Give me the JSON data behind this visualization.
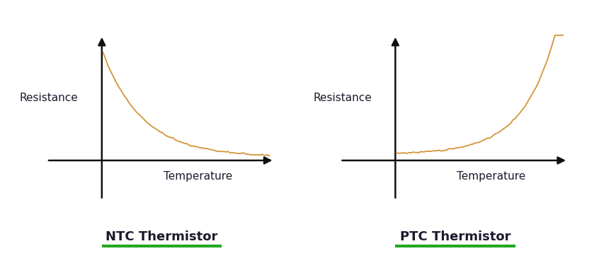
{
  "background_color": "#ffffff",
  "curve_color": "#D4943A",
  "axis_color": "#111111",
  "label_color": "#1a1a2e",
  "underline_color": "#22aa22",
  "ntc_label": "NTC Thermistor",
  "ptc_label": "PTC Thermistor",
  "resistance_label": "Resistance",
  "temperature_label": "Temperature",
  "label_fontsize": 11,
  "title_fontsize": 13,
  "underline_color_green": "#22aa22"
}
